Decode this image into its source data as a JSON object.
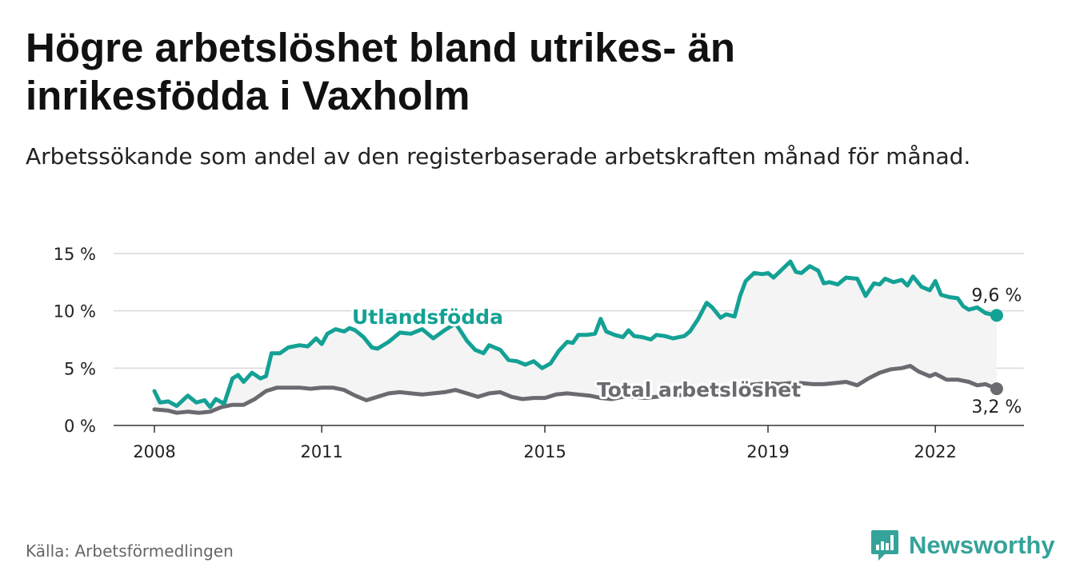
{
  "title": "Högre arbetslöshet bland utrikes- än inrikesfödda i Vaxholm",
  "subtitle": "Arbetssökande som andel av den registerbaserade arbetskraften månad för månad.",
  "source": "Källa: Arbetsförmedlingen",
  "brand": {
    "name": "Newsworthy",
    "icon": "bar-chart-logo-icon"
  },
  "colors": {
    "foreign_born": "#14a195",
    "total": "#6b6a70",
    "grid": "#d9d9d9",
    "fill": "#f4f4f4",
    "brand": "#34a39a"
  },
  "chart_data": {
    "type": "line",
    "xlim": [
      2008.0,
      2023.5
    ],
    "ylim": [
      0,
      15
    ],
    "yticks": [
      0,
      5,
      10,
      15
    ],
    "ytick_labels": [
      "0 %",
      "5 %",
      "10 %",
      "15 %"
    ],
    "xticks": [
      2008,
      2011,
      2015,
      2019,
      2022
    ],
    "xtick_labels": [
      "2008",
      "2011",
      "2015",
      "2019",
      "2022"
    ],
    "series": [
      {
        "name": "Utlandsfödda",
        "label": "Utlandsfödda",
        "end_label": "9,6 %",
        "points": [
          [
            2008.0,
            3.0
          ],
          [
            2008.1,
            2.0
          ],
          [
            2008.25,
            2.1
          ],
          [
            2008.4,
            1.7
          ],
          [
            2008.6,
            2.6
          ],
          [
            2008.75,
            2.0
          ],
          [
            2008.9,
            2.2
          ],
          [
            2009.0,
            1.6
          ],
          [
            2009.1,
            2.3
          ],
          [
            2009.25,
            1.9
          ],
          [
            2009.4,
            4.1
          ],
          [
            2009.5,
            4.4
          ],
          [
            2009.6,
            3.8
          ],
          [
            2009.75,
            4.6
          ],
          [
            2009.9,
            4.1
          ],
          [
            2010.0,
            4.3
          ],
          [
            2010.1,
            6.3
          ],
          [
            2010.25,
            6.3
          ],
          [
            2010.4,
            6.8
          ],
          [
            2010.6,
            7.0
          ],
          [
            2010.75,
            6.9
          ],
          [
            2010.9,
            7.6
          ],
          [
            2011.0,
            7.1
          ],
          [
            2011.1,
            8.0
          ],
          [
            2011.25,
            8.4
          ],
          [
            2011.4,
            8.2
          ],
          [
            2011.5,
            8.5
          ],
          [
            2011.6,
            8.3
          ],
          [
            2011.75,
            7.7
          ],
          [
            2011.9,
            6.8
          ],
          [
            2012.0,
            6.7
          ],
          [
            2012.2,
            7.3
          ],
          [
            2012.4,
            8.1
          ],
          [
            2012.6,
            8.0
          ],
          [
            2012.8,
            8.4
          ],
          [
            2013.0,
            7.6
          ],
          [
            2013.2,
            8.3
          ],
          [
            2013.4,
            8.9
          ],
          [
            2013.6,
            7.4
          ],
          [
            2013.75,
            6.6
          ],
          [
            2013.9,
            6.3
          ],
          [
            2014.0,
            7.0
          ],
          [
            2014.2,
            6.6
          ],
          [
            2014.35,
            5.7
          ],
          [
            2014.5,
            5.6
          ],
          [
            2014.65,
            5.3
          ],
          [
            2014.8,
            5.6
          ],
          [
            2014.95,
            5.0
          ],
          [
            2015.1,
            5.4
          ],
          [
            2015.25,
            6.5
          ],
          [
            2015.4,
            7.3
          ],
          [
            2015.5,
            7.2
          ],
          [
            2015.6,
            7.9
          ],
          [
            2015.75,
            7.9
          ],
          [
            2015.9,
            8.0
          ],
          [
            2016.0,
            9.3
          ],
          [
            2016.1,
            8.2
          ],
          [
            2016.25,
            7.9
          ],
          [
            2016.4,
            7.7
          ],
          [
            2016.5,
            8.3
          ],
          [
            2016.6,
            7.8
          ],
          [
            2016.75,
            7.7
          ],
          [
            2016.9,
            7.5
          ],
          [
            2017.0,
            7.9
          ],
          [
            2017.15,
            7.8
          ],
          [
            2017.3,
            7.6
          ],
          [
            2017.5,
            7.8
          ],
          [
            2017.6,
            8.2
          ],
          [
            2017.75,
            9.3
          ],
          [
            2017.9,
            10.7
          ],
          [
            2018.0,
            10.3
          ],
          [
            2018.15,
            9.4
          ],
          [
            2018.25,
            9.7
          ],
          [
            2018.4,
            9.5
          ],
          [
            2018.5,
            11.3
          ],
          [
            2018.6,
            12.6
          ],
          [
            2018.75,
            13.3
          ],
          [
            2018.9,
            13.2
          ],
          [
            2019.0,
            13.3
          ],
          [
            2019.1,
            12.9
          ],
          [
            2019.25,
            13.6
          ],
          [
            2019.4,
            14.3
          ],
          [
            2019.5,
            13.4
          ],
          [
            2019.6,
            13.3
          ],
          [
            2019.75,
            13.9
          ],
          [
            2019.9,
            13.5
          ],
          [
            2020.0,
            12.4
          ],
          [
            2020.1,
            12.5
          ],
          [
            2020.25,
            12.3
          ],
          [
            2020.4,
            12.9
          ],
          [
            2020.6,
            12.8
          ],
          [
            2020.75,
            11.3
          ],
          [
            2020.9,
            12.4
          ],
          [
            2021.0,
            12.3
          ],
          [
            2021.1,
            12.8
          ],
          [
            2021.25,
            12.5
          ],
          [
            2021.4,
            12.7
          ],
          [
            2021.5,
            12.2
          ],
          [
            2021.6,
            13.0
          ],
          [
            2021.75,
            12.1
          ],
          [
            2021.9,
            11.8
          ],
          [
            2022.0,
            12.6
          ],
          [
            2022.1,
            11.4
          ],
          [
            2022.25,
            11.2
          ],
          [
            2022.4,
            11.1
          ],
          [
            2022.5,
            10.4
          ],
          [
            2022.6,
            10.1
          ],
          [
            2022.75,
            10.3
          ],
          [
            2022.9,
            9.8
          ],
          [
            2023.0,
            9.7
          ],
          [
            2023.1,
            9.6
          ]
        ]
      },
      {
        "name": "Total arbetslöshet",
        "label": "Total arbetslöshet",
        "end_label": "3,2 %",
        "points": [
          [
            2008.0,
            1.4
          ],
          [
            2008.25,
            1.3
          ],
          [
            2008.4,
            1.1
          ],
          [
            2008.6,
            1.2
          ],
          [
            2008.8,
            1.1
          ],
          [
            2009.0,
            1.2
          ],
          [
            2009.2,
            1.6
          ],
          [
            2009.4,
            1.8
          ],
          [
            2009.6,
            1.8
          ],
          [
            2009.8,
            2.3
          ],
          [
            2010.0,
            3.0
          ],
          [
            2010.2,
            3.3
          ],
          [
            2010.4,
            3.3
          ],
          [
            2010.6,
            3.3
          ],
          [
            2010.8,
            3.2
          ],
          [
            2011.0,
            3.3
          ],
          [
            2011.2,
            3.3
          ],
          [
            2011.4,
            3.1
          ],
          [
            2011.6,
            2.6
          ],
          [
            2011.8,
            2.2
          ],
          [
            2012.0,
            2.5
          ],
          [
            2012.2,
            2.8
          ],
          [
            2012.4,
            2.9
          ],
          [
            2012.6,
            2.8
          ],
          [
            2012.8,
            2.7
          ],
          [
            2013.0,
            2.8
          ],
          [
            2013.2,
            2.9
          ],
          [
            2013.4,
            3.1
          ],
          [
            2013.6,
            2.8
          ],
          [
            2013.8,
            2.5
          ],
          [
            2014.0,
            2.8
          ],
          [
            2014.2,
            2.9
          ],
          [
            2014.4,
            2.5
          ],
          [
            2014.6,
            2.3
          ],
          [
            2014.8,
            2.4
          ],
          [
            2015.0,
            2.4
          ],
          [
            2015.2,
            2.7
          ],
          [
            2015.4,
            2.8
          ],
          [
            2015.6,
            2.7
          ],
          [
            2015.8,
            2.6
          ],
          [
            2016.0,
            2.4
          ],
          [
            2016.2,
            2.3
          ],
          [
            2016.4,
            2.5
          ],
          [
            2016.6,
            2.5
          ],
          [
            2016.8,
            2.4
          ],
          [
            2017.0,
            2.5
          ],
          [
            2017.2,
            2.6
          ],
          [
            2017.4,
            2.6
          ],
          [
            2017.6,
            2.8
          ],
          [
            2017.8,
            3.2
          ],
          [
            2018.0,
            3.1
          ],
          [
            2018.2,
            3.0
          ],
          [
            2018.4,
            3.2
          ],
          [
            2018.6,
            3.5
          ],
          [
            2018.8,
            3.6
          ],
          [
            2019.0,
            3.7
          ],
          [
            2019.2,
            3.6
          ],
          [
            2019.4,
            3.7
          ],
          [
            2019.6,
            3.7
          ],
          [
            2019.8,
            3.6
          ],
          [
            2020.0,
            3.6
          ],
          [
            2020.2,
            3.7
          ],
          [
            2020.4,
            3.8
          ],
          [
            2020.6,
            3.5
          ],
          [
            2020.8,
            4.1
          ],
          [
            2021.0,
            4.6
          ],
          [
            2021.2,
            4.9
          ],
          [
            2021.4,
            5.0
          ],
          [
            2021.55,
            5.2
          ],
          [
            2021.7,
            4.7
          ],
          [
            2021.9,
            4.3
          ],
          [
            2022.0,
            4.5
          ],
          [
            2022.2,
            4.0
          ],
          [
            2022.4,
            4.0
          ],
          [
            2022.6,
            3.8
          ],
          [
            2022.75,
            3.5
          ],
          [
            2022.9,
            3.6
          ],
          [
            2023.0,
            3.4
          ],
          [
            2023.1,
            3.2
          ]
        ]
      }
    ]
  }
}
